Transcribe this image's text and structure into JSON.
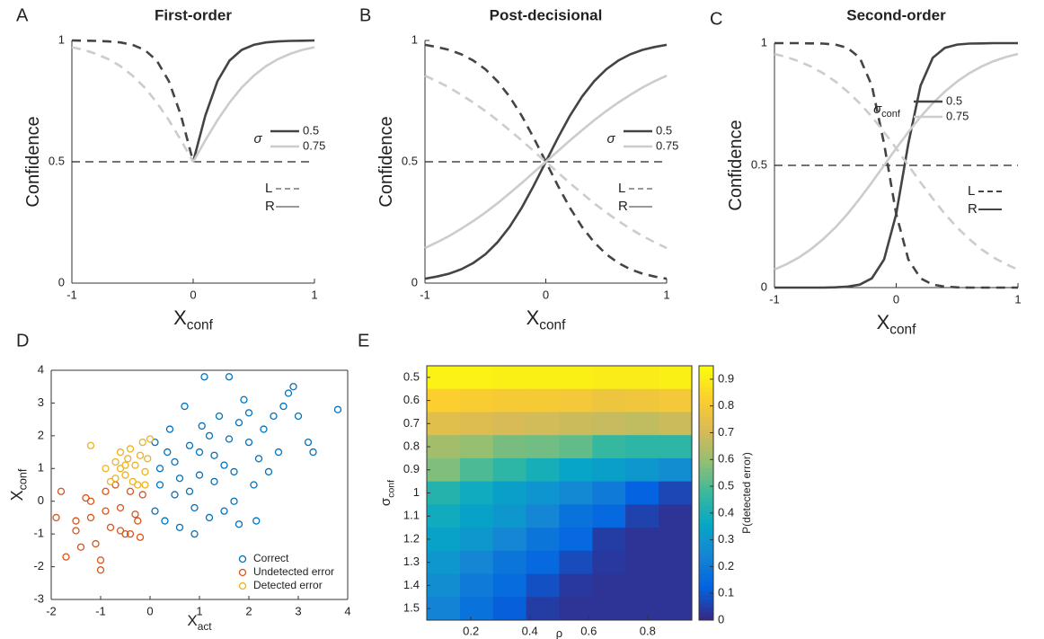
{
  "chart_data": [
    {
      "type": "line",
      "label": "A",
      "title": "First-order",
      "ylabel": "Confidence",
      "xlabel": "X",
      "xlabel_sub": "conf",
      "x": [
        -1,
        -0.9,
        -0.8,
        -0.7,
        -0.6,
        -0.5,
        -0.4,
        -0.3,
        -0.2,
        -0.1,
        0,
        0.1,
        0.2,
        0.3,
        0.4,
        0.5,
        0.6,
        0.7,
        0.8,
        0.9,
        1
      ],
      "xlim": [
        -1,
        1
      ],
      "ylim": [
        0,
        1
      ],
      "xticks": [
        -1,
        0,
        1
      ],
      "yticks": [
        0,
        0.5,
        1
      ],
      "reference_line": 0.5,
      "series": [
        {
          "color": "#444444",
          "dashed": false,
          "values": [
            null,
            null,
            null,
            null,
            null,
            null,
            null,
            null,
            null,
            null,
            0.5,
            0.69,
            0.832,
            0.917,
            0.961,
            0.982,
            0.992,
            0.996,
            0.998,
            0.999,
            1.0
          ]
        },
        {
          "color": "#444444",
          "dashed": true,
          "values": [
            1.0,
            0.999,
            0.998,
            0.996,
            0.992,
            0.982,
            0.961,
            0.917,
            0.832,
            0.69,
            0.5,
            null,
            null,
            null,
            null,
            null,
            null,
            null,
            null,
            null,
            null
          ]
        },
        {
          "color": "#cccccc",
          "dashed": false,
          "values": [
            null,
            null,
            null,
            null,
            null,
            null,
            null,
            null,
            null,
            null,
            0.5,
            0.588,
            0.671,
            0.744,
            0.806,
            0.855,
            0.894,
            0.923,
            0.945,
            0.961,
            0.972
          ]
        },
        {
          "color": "#cccccc",
          "dashed": true,
          "values": [
            0.972,
            0.961,
            0.945,
            0.923,
            0.894,
            0.855,
            0.806,
            0.744,
            0.671,
            0.588,
            0.5,
            null,
            null,
            null,
            null,
            null,
            null,
            null,
            null,
            null,
            null
          ]
        }
      ],
      "sigma_legend": {
        "symbol": "σ",
        "entries": [
          {
            "label": "0.5",
            "color": "#444444"
          },
          {
            "label": "0.75",
            "color": "#cccccc"
          }
        ]
      },
      "side_legend": {
        "color": "#999999",
        "entries": [
          {
            "label": "L",
            "dashed": true
          },
          {
            "label": "R",
            "dashed": false
          }
        ]
      }
    },
    {
      "type": "line",
      "label": "B",
      "title": "Post-decisional",
      "ylabel": "Confidence",
      "xlabel": "X",
      "xlabel_sub": "conf",
      "x": [
        -1,
        -0.9,
        -0.8,
        -0.7,
        -0.6,
        -0.5,
        -0.4,
        -0.3,
        -0.2,
        -0.1,
        0,
        0.1,
        0.2,
        0.3,
        0.4,
        0.5,
        0.6,
        0.7,
        0.8,
        0.9,
        1
      ],
      "xlim": [
        -1,
        1
      ],
      "ylim": [
        0,
        1
      ],
      "xticks": [
        -1,
        0,
        1
      ],
      "yticks": [
        0,
        0.5,
        1
      ],
      "reference_line": 0.5,
      "series": [
        {
          "color": "#444444",
          "dashed": false,
          "values": [
            0.018,
            0.027,
            0.039,
            0.057,
            0.083,
            0.119,
            0.168,
            0.231,
            0.31,
            0.401,
            0.5,
            0.599,
            0.69,
            0.769,
            0.832,
            0.881,
            0.917,
            0.943,
            0.961,
            0.973,
            0.982
          ]
        },
        {
          "color": "#444444",
          "dashed": true,
          "values": [
            0.982,
            0.973,
            0.961,
            0.943,
            0.917,
            0.881,
            0.832,
            0.769,
            0.69,
            0.599,
            0.5,
            0.401,
            0.31,
            0.231,
            0.168,
            0.119,
            0.083,
            0.057,
            0.039,
            0.027,
            0.018
          ]
        },
        {
          "color": "#cccccc",
          "dashed": false,
          "values": [
            0.145,
            0.168,
            0.194,
            0.224,
            0.256,
            0.291,
            0.329,
            0.37,
            0.412,
            0.456,
            0.5,
            0.544,
            0.588,
            0.63,
            0.671,
            0.709,
            0.744,
            0.776,
            0.806,
            0.832,
            0.855
          ]
        },
        {
          "color": "#cccccc",
          "dashed": true,
          "values": [
            0.855,
            0.832,
            0.806,
            0.776,
            0.744,
            0.709,
            0.671,
            0.63,
            0.588,
            0.544,
            0.5,
            0.456,
            0.412,
            0.37,
            0.329,
            0.291,
            0.256,
            0.224,
            0.194,
            0.168,
            0.145
          ]
        }
      ],
      "sigma_legend": {
        "symbol": "σ",
        "entries": [
          {
            "label": "0.5",
            "color": "#444444"
          },
          {
            "label": "0.75",
            "color": "#cccccc"
          }
        ]
      },
      "side_legend": {
        "color": "#999999",
        "entries": [
          {
            "label": "L",
            "dashed": true
          },
          {
            "label": "R",
            "dashed": false
          }
        ]
      }
    },
    {
      "type": "line",
      "label": "C",
      "title": "Second-order",
      "ylabel": "Confidence",
      "xlabel": "X",
      "xlabel_sub": "conf",
      "x": [
        -1,
        -0.9,
        -0.8,
        -0.7,
        -0.6,
        -0.5,
        -0.4,
        -0.3,
        -0.2,
        -0.1,
        0,
        0.1,
        0.2,
        0.3,
        0.4,
        0.5,
        0.6,
        0.7,
        0.8,
        0.9,
        1
      ],
      "xlim": [
        -1,
        1
      ],
      "ylim": [
        0,
        1
      ],
      "xticks": [
        -1,
        0,
        1
      ],
      "yticks": [
        0,
        0.5,
        1
      ],
      "reference_line": 0.5,
      "series": [
        {
          "color": "#444444",
          "dashed": false,
          "values": [
            0.0,
            0.0,
            0.0,
            0.0,
            0.0,
            0.001,
            0.004,
            0.012,
            0.038,
            0.115,
            0.301,
            0.589,
            0.826,
            0.94,
            0.981,
            0.994,
            0.998,
            0.999,
            1.0,
            1.0,
            1.0
          ]
        },
        {
          "color": "#444444",
          "dashed": true,
          "values": [
            1.0,
            1.0,
            1.0,
            0.999,
            0.998,
            0.994,
            0.981,
            0.94,
            0.826,
            0.589,
            0.301,
            0.115,
            0.038,
            0.012,
            0.004,
            0.001,
            0.0,
            0.0,
            0.0,
            0.0,
            0.0
          ]
        },
        {
          "color": "#cccccc",
          "dashed": false,
          "values": [
            0.074,
            0.096,
            0.123,
            0.157,
            0.198,
            0.246,
            0.301,
            0.364,
            0.43,
            0.5,
            0.57,
            0.636,
            0.699,
            0.754,
            0.802,
            0.843,
            0.877,
            0.904,
            0.926,
            0.943,
            0.956
          ]
        },
        {
          "color": "#cccccc",
          "dashed": true,
          "values": [
            0.956,
            0.943,
            0.926,
            0.904,
            0.877,
            0.843,
            0.802,
            0.754,
            0.699,
            0.636,
            0.57,
            0.5,
            0.43,
            0.364,
            0.301,
            0.246,
            0.198,
            0.157,
            0.123,
            0.096,
            0.074
          ]
        }
      ],
      "sigma_legend": {
        "symbol": "σ",
        "subscript": "conf",
        "entries": [
          {
            "label": "0.5",
            "color": "#444444"
          },
          {
            "label": "0.75",
            "color": "#cccccc"
          }
        ]
      },
      "side_legend": {
        "color": "#444444",
        "entries": [
          {
            "label": "L",
            "dashed": true
          },
          {
            "label": "R",
            "dashed": false
          }
        ]
      }
    },
    {
      "type": "scatter",
      "label": "D",
      "xlabel": "X",
      "xlabel_sub": "act",
      "ylabel": "X",
      "ylabel_sub": "conf",
      "xlim": [
        -2,
        4
      ],
      "ylim": [
        -3,
        4
      ],
      "xticks": [
        -2,
        -1,
        0,
        1,
        2,
        3,
        4
      ],
      "yticks": [
        -3,
        -2,
        -1,
        0,
        1,
        2,
        3,
        4
      ],
      "series": [
        {
          "name": "Correct",
          "color": "#0072bd",
          "x": [
            0.2,
            0.5,
            0.8,
            1.0,
            1.2,
            1.5,
            1.8,
            2.0,
            2.3,
            2.6,
            2.9,
            3.2,
            3.8,
            1.1,
            1.6,
            0.3,
            0.6,
            0.9,
            1.3,
            1.7,
            2.1,
            2.4,
            0.1,
            0.4,
            0.7,
            1.4,
            1.9,
            2.7,
            3.0,
            0.5,
            1.0,
            1.5,
            1.8,
            2.2,
            2.5,
            0.2,
            0.8,
            1.3,
            1.6,
            2.0,
            0.9,
            1.2,
            0.1,
            0.6,
            3.3,
            2.8,
            1.7,
            0.35,
            1.05,
            2.15
          ],
          "y": [
            0.5,
            1.2,
            0.3,
            1.5,
            2.0,
            1.1,
            2.4,
            1.8,
            2.2,
            1.5,
            3.5,
            1.8,
            2.8,
            3.8,
            3.8,
            -0.6,
            -0.8,
            -0.2,
            0.6,
            0.9,
            0.5,
            0.9,
            1.8,
            2.2,
            2.9,
            2.6,
            3.1,
            2.9,
            2.6,
            0.2,
            0.8,
            -0.3,
            -0.7,
            1.3,
            2.6,
            1.0,
            1.7,
            1.4,
            1.9,
            2.7,
            -1.0,
            -0.5,
            -0.3,
            0.7,
            1.5,
            3.3,
            0.0,
            1.5,
            2.3,
            -0.6
          ]
        },
        {
          "name": "Undetected error",
          "color": "#d95319",
          "x": [
            -1.9,
            -1.8,
            -1.7,
            -1.5,
            -1.4,
            -1.3,
            -1.2,
            -1.1,
            -1.0,
            -1.0,
            -0.9,
            -0.8,
            -0.7,
            -0.6,
            -0.5,
            -0.4,
            -0.3,
            -0.2,
            -0.15,
            -0.9,
            -0.6,
            -1.5,
            -0.4,
            -1.2,
            -0.25
          ],
          "y": [
            -0.5,
            0.3,
            -1.7,
            -0.6,
            -1.4,
            0.1,
            -0.5,
            -1.3,
            -2.1,
            -1.8,
            0.3,
            -0.8,
            0.5,
            -0.2,
            -1.0,
            0.3,
            -0.4,
            -1.1,
            0.2,
            -0.3,
            -0.9,
            -0.9,
            -1.0,
            0.0,
            -0.6
          ]
        },
        {
          "name": "Detected error",
          "color": "#edb120",
          "x": [
            -1.2,
            -0.9,
            -0.8,
            -0.7,
            -0.6,
            -0.5,
            -0.4,
            -0.3,
            -0.2,
            -0.1,
            -0.15,
            -0.05,
            -0.5,
            -0.35,
            -0.25,
            -0.7,
            -0.1,
            -0.45,
            0.0,
            -0.6
          ],
          "y": [
            1.7,
            1.0,
            0.6,
            1.2,
            1.5,
            0.8,
            1.6,
            1.1,
            1.4,
            0.9,
            1.8,
            1.3,
            1.1,
            0.6,
            0.5,
            0.7,
            0.5,
            1.3,
            1.9,
            1.0
          ]
        }
      ]
    },
    {
      "type": "heatmap",
      "label": "E",
      "xlabel": "ρ",
      "ylabel": "σ",
      "ylabel_sub": "conf",
      "colorbar_label": "P(detected error)",
      "colormap": "parula",
      "rows": [
        "0.5",
        "0.6",
        "0.7",
        "0.8",
        "0.9",
        "1",
        "1.1",
        "1.2",
        "1.3",
        "1.4",
        "1.5"
      ],
      "x": [
        0.106,
        0.219,
        0.331,
        0.444,
        0.556,
        0.669,
        0.781,
        0.894
      ],
      "xlim": [
        0.05,
        0.95
      ],
      "xticks": [
        0.2,
        0.4,
        0.6,
        0.8
      ],
      "clim": [
        0,
        0.95
      ],
      "cticks": [
        0,
        0.1,
        0.2,
        0.3,
        0.4,
        0.5,
        0.6,
        0.7,
        0.8,
        0.9
      ],
      "values": [
        [
          0.93,
          0.93,
          0.92,
          0.92,
          0.92,
          0.91,
          0.91,
          0.92
        ],
        [
          0.83,
          0.82,
          0.81,
          0.81,
          0.8,
          0.78,
          0.79,
          0.8
        ],
        [
          0.74,
          0.73,
          0.71,
          0.7,
          0.69,
          0.68,
          0.67,
          0.69
        ],
        [
          0.62,
          0.6,
          0.56,
          0.55,
          0.53,
          0.47,
          0.45,
          0.45
        ],
        [
          0.57,
          0.5,
          0.45,
          0.4,
          0.35,
          0.33,
          0.3,
          0.27
        ],
        [
          0.43,
          0.38,
          0.33,
          0.29,
          0.25,
          0.2,
          0.12,
          0.06
        ],
        [
          0.38,
          0.34,
          0.3,
          0.24,
          0.17,
          0.14,
          0.05,
          0.02
        ],
        [
          0.34,
          0.3,
          0.24,
          0.18,
          0.14,
          0.04,
          0.02,
          0.02
        ],
        [
          0.3,
          0.24,
          0.18,
          0.14,
          0.07,
          0.03,
          0.02,
          0.02
        ],
        [
          0.27,
          0.2,
          0.15,
          0.08,
          0.03,
          0.02,
          0.02,
          0.02
        ],
        [
          0.23,
          0.17,
          0.11,
          0.04,
          0.02,
          0.02,
          0.02,
          0.02
        ]
      ]
    }
  ]
}
